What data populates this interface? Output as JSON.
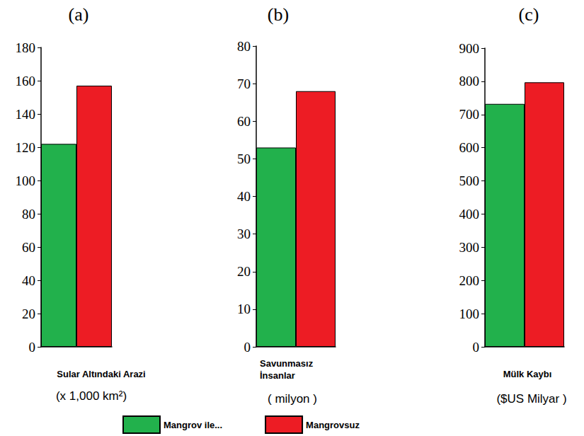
{
  "chart_data": [
    {
      "type": "bar",
      "title": "(a)",
      "xlabel": "Sular Altındaki Arazi",
      "xunit": "(x 1,000 km²)",
      "categories": [
        null
      ],
      "series": [
        {
          "name": "Mangrov ile...",
          "color": "#22b14c",
          "values": [
            122
          ]
        },
        {
          "name": "Mangrovsuz",
          "color": "#ed1c24",
          "values": [
            157
          ]
        }
      ],
      "ylim": [
        0,
        180
      ],
      "yticks": [
        0,
        20,
        40,
        60,
        80,
        100,
        120,
        140,
        160,
        180
      ],
      "grid": false,
      "legend": "bottom"
    },
    {
      "type": "bar",
      "title": "(b)",
      "xlabel": "Savunmasız\nİnsanlar",
      "xunit": "( milyon )",
      "categories": [
        null
      ],
      "series": [
        {
          "name": "Mangrov ile...",
          "color": "#22b14c",
          "values": [
            53
          ]
        },
        {
          "name": "Mangrovsuz",
          "color": "#ed1c24",
          "values": [
            68
          ]
        }
      ],
      "ylim": [
        0,
        80
      ],
      "yticks": [
        0,
        10,
        20,
        30,
        40,
        50,
        60,
        70,
        80
      ],
      "grid": false,
      "legend": "bottom"
    },
    {
      "type": "bar",
      "title": "(c)",
      "xlabel": "Mülk Kaybı",
      "xunit": "($US Milyar )",
      "categories": [
        null
      ],
      "series": [
        {
          "name": "Mangrov ile...",
          "color": "#22b14c",
          "values": [
            732
          ]
        },
        {
          "name": "Mangrovsuz",
          "color": "#ed1c24",
          "values": [
            797
          ]
        }
      ],
      "ylim": [
        0,
        900
      ],
      "yticks": [
        0,
        100,
        200,
        300,
        400,
        500,
        600,
        700,
        800,
        900
      ],
      "grid": false,
      "legend": "bottom"
    }
  ]
}
